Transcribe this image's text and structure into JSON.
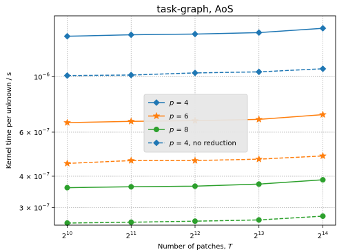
{
  "chart_data": {
    "type": "line",
    "title": "task-graph, AoS",
    "xlabel": "Number of patches, T",
    "ylabel": "Kernel time per unknown / s",
    "x_scale": "log2",
    "y_scale": "log10",
    "x": [
      10,
      11,
      12,
      13,
      14
    ],
    "xticks": [
      {
        "base": "2",
        "exp": "10",
        "value": 10
      },
      {
        "base": "2",
        "exp": "11",
        "value": 11
      },
      {
        "base": "2",
        "exp": "12",
        "value": 12
      },
      {
        "base": "2",
        "exp": "13",
        "value": 13
      },
      {
        "base": "2",
        "exp": "14",
        "value": 14
      }
    ],
    "yticks": [
      {
        "mant": "3 × 10",
        "exp": "−7",
        "value": 3e-07
      },
      {
        "mant": "4 × 10",
        "exp": "−7",
        "value": 4e-07
      },
      {
        "mant": "6 × 10",
        "exp": "−7",
        "value": 6e-07
      },
      {
        "mant": "10",
        "exp": "−6",
        "value": 1e-06
      }
    ],
    "xlim": [
      9.8,
      14.2
    ],
    "ylim": [
      2.55e-07,
      1.75e-06
    ],
    "grid": true,
    "legend_position": "center",
    "series": [
      {
        "name": "p = 4",
        "color": "#1f77b4",
        "marker": "diamond",
        "dashed": false,
        "values": [
          1.45e-06,
          1.47e-06,
          1.48e-06,
          1.5e-06,
          1.56e-06
        ]
      },
      {
        "name": "p = 6",
        "color": "#ff7f0e",
        "marker": "star",
        "dashed": false,
        "values": [
          6.55e-07,
          6.63e-07,
          6.67e-07,
          6.75e-07,
          7.05e-07
        ]
      },
      {
        "name": "p = 8",
        "color": "#2ca02c",
        "marker": "circle",
        "dashed": false,
        "values": [
          3.6e-07,
          3.63e-07,
          3.65e-07,
          3.72e-07,
          3.87e-07
        ]
      },
      {
        "name": "p = 4, no reduction",
        "color": "#1f77b4",
        "marker": "diamond",
        "dashed": true,
        "values": [
          1.01e-06,
          1.015e-06,
          1.035e-06,
          1.045e-06,
          1.075e-06
        ]
      },
      {
        "name": "",
        "color": "#ff7f0e",
        "marker": "star",
        "dashed": true,
        "values": [
          4.5e-07,
          4.62e-07,
          4.62e-07,
          4.68e-07,
          4.82e-07
        ]
      },
      {
        "name": "",
        "color": "#2ca02c",
        "marker": "circle",
        "dashed": true,
        "values": [
          2.6e-07,
          2.62e-07,
          2.645e-07,
          2.675e-07,
          2.77e-07
        ]
      }
    ]
  }
}
